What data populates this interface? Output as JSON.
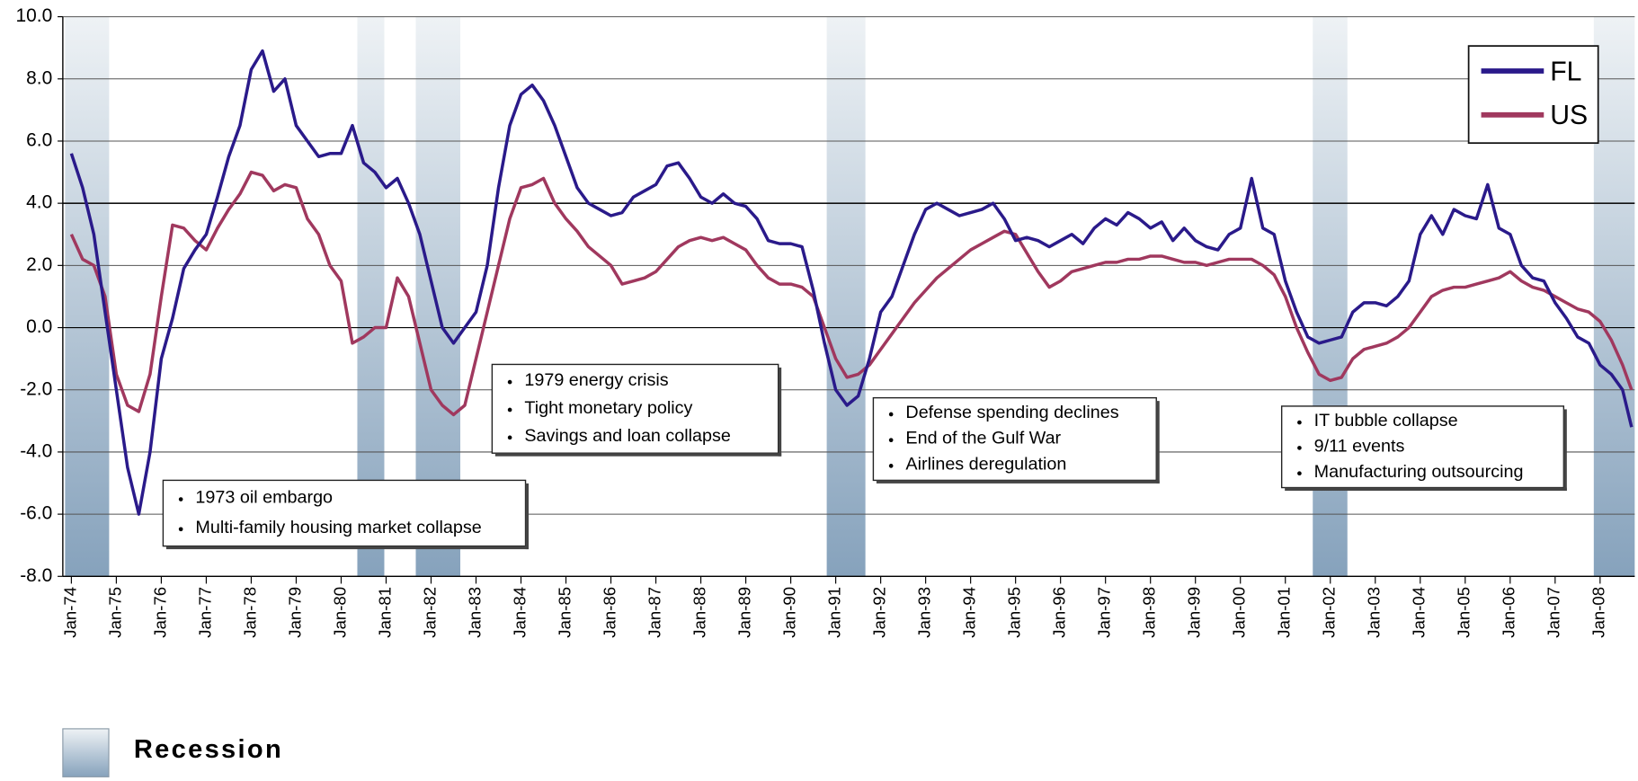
{
  "chart_data": {
    "type": "line",
    "xlim": [
      1973.81,
      2008.77
    ],
    "xticks": [
      {
        "value": 1974,
        "label": "Jan-74"
      },
      {
        "value": 1975,
        "label": "Jan-75"
      },
      {
        "value": 1976,
        "label": "Jan-76"
      },
      {
        "value": 1977,
        "label": "Jan-77"
      },
      {
        "value": 1978,
        "label": "Jan-78"
      },
      {
        "value": 1979,
        "label": "Jan-79"
      },
      {
        "value": 1980,
        "label": "Jan-80"
      },
      {
        "value": 1981,
        "label": "Jan-81"
      },
      {
        "value": 1982,
        "label": "Jan-82"
      },
      {
        "value": 1983,
        "label": "Jan-83"
      },
      {
        "value": 1984,
        "label": "Jan-84"
      },
      {
        "value": 1985,
        "label": "Jan-85"
      },
      {
        "value": 1986,
        "label": "Jan-86"
      },
      {
        "value": 1987,
        "label": "Jan-87"
      },
      {
        "value": 1988,
        "label": "Jan-88"
      },
      {
        "value": 1989,
        "label": "Jan-89"
      },
      {
        "value": 1990,
        "label": "Jan-90"
      },
      {
        "value": 1991,
        "label": "Jan-91"
      },
      {
        "value": 1992,
        "label": "Jan-92"
      },
      {
        "value": 1993,
        "label": "Jan-93"
      },
      {
        "value": 1994,
        "label": "Jan-94"
      },
      {
        "value": 1995,
        "label": "Jan-95"
      },
      {
        "value": 1996,
        "label": "Jan-96"
      },
      {
        "value": 1997,
        "label": "Jan-97"
      },
      {
        "value": 1998,
        "label": "Jan-98"
      },
      {
        "value": 1999,
        "label": "Jan-99"
      },
      {
        "value": 2000,
        "label": "Jan-00"
      },
      {
        "value": 2001,
        "label": "Jan-01"
      },
      {
        "value": 2002,
        "label": "Jan-02"
      },
      {
        "value": 2003,
        "label": "Jan-03"
      },
      {
        "value": 2004,
        "label": "Jan-04"
      },
      {
        "value": 2005,
        "label": "Jan-05"
      },
      {
        "value": 2006,
        "label": "Jan-06"
      },
      {
        "value": 2007,
        "label": "Jan-07"
      },
      {
        "value": 2008,
        "label": "Jan-08"
      }
    ],
    "ylim": [
      -8,
      10
    ],
    "yticks": [
      {
        "value": -8,
        "label": "-8.0"
      },
      {
        "value": -6,
        "label": "-6.0"
      },
      {
        "value": -4,
        "label": "-4.0"
      },
      {
        "value": -2,
        "label": "-2.0"
      },
      {
        "value": 0,
        "label": "0.0"
      },
      {
        "value": 2,
        "label": "2.0"
      },
      {
        "value": 4,
        "label": "4.0"
      },
      {
        "value": 6,
        "label": "6.0"
      },
      {
        "value": 8,
        "label": "8.0"
      },
      {
        "value": 10,
        "label": "10.0"
      }
    ],
    "grid": true,
    "legend": "upper right",
    "x": [
      1974,
      1974.25,
      1974.5,
      1974.75,
      1975,
      1975.25,
      1975.5,
      1975.75,
      1976,
      1976.25,
      1976.5,
      1976.75,
      1977,
      1977.25,
      1977.5,
      1977.75,
      1978,
      1978.25,
      1978.5,
      1978.75,
      1979,
      1979.25,
      1979.5,
      1979.75,
      1980,
      1980.25,
      1980.5,
      1980.75,
      1981,
      1981.25,
      1981.5,
      1981.75,
      1982,
      1982.25,
      1982.5,
      1982.75,
      1983,
      1983.25,
      1983.5,
      1983.75,
      1984,
      1984.25,
      1984.5,
      1984.75,
      1985,
      1985.25,
      1985.5,
      1985.75,
      1986,
      1986.25,
      1986.5,
      1986.75,
      1987,
      1987.25,
      1987.5,
      1987.75,
      1988,
      1988.25,
      1988.5,
      1988.75,
      1989,
      1989.25,
      1989.5,
      1989.75,
      1990,
      1990.25,
      1990.5,
      1990.75,
      1991,
      1991.25,
      1991.5,
      1991.75,
      1992,
      1992.25,
      1992.5,
      1992.75,
      1993,
      1993.25,
      1993.5,
      1993.75,
      1994,
      1994.25,
      1994.5,
      1994.75,
      1995,
      1995.25,
      1995.5,
      1995.75,
      1996,
      1996.25,
      1996.5,
      1996.75,
      1997,
      1997.25,
      1997.5,
      1997.75,
      1998,
      1998.25,
      1998.5,
      1998.75,
      1999,
      1999.25,
      1999.5,
      1999.75,
      2000,
      2000.25,
      2000.5,
      2000.75,
      2001,
      2001.25,
      2001.5,
      2001.75,
      2002,
      2002.25,
      2002.5,
      2002.75,
      2003,
      2003.25,
      2003.5,
      2003.75,
      2004,
      2004.25,
      2004.5,
      2004.75,
      2005,
      2005.25,
      2005.5,
      2005.75,
      2006,
      2006.25,
      2006.5,
      2006.75,
      2007,
      2007.25,
      2007.5,
      2007.75,
      2008,
      2008.25,
      2008.5,
      2008.7
    ],
    "series": [
      {
        "name": "FL",
        "color": "#2a1a8a",
        "values": [
          5.6,
          4.5,
          3.0,
          0.5,
          -2.0,
          -4.5,
          -6.0,
          -4.0,
          -1.0,
          0.3,
          1.9,
          2.5,
          3.0,
          4.2,
          5.5,
          6.5,
          8.3,
          8.9,
          7.6,
          8.0,
          6.5,
          6.0,
          5.5,
          5.6,
          5.6,
          6.5,
          5.3,
          5.0,
          4.5,
          4.8,
          4.0,
          3.0,
          1.5,
          0.0,
          -0.5,
          0.0,
          0.5,
          2.0,
          4.5,
          6.5,
          7.5,
          7.8,
          7.3,
          6.5,
          5.5,
          4.5,
          4.0,
          3.8,
          3.6,
          3.7,
          4.2,
          4.4,
          4.6,
          5.2,
          5.3,
          4.8,
          4.2,
          4.0,
          4.3,
          4.0,
          3.9,
          3.5,
          2.8,
          2.7,
          2.7,
          2.6,
          1.2,
          -0.5,
          -2.0,
          -2.5,
          -2.2,
          -1.0,
          0.5,
          1.0,
          2.0,
          3.0,
          3.8,
          4.0,
          3.8,
          3.6,
          3.7,
          3.8,
          4.0,
          3.5,
          2.8,
          2.9,
          2.8,
          2.6,
          2.8,
          3.0,
          2.7,
          3.2,
          3.5,
          3.3,
          3.7,
          3.5,
          3.2,
          3.4,
          2.8,
          3.2,
          2.8,
          2.6,
          2.5,
          3.0,
          3.2,
          4.8,
          3.2,
          3.0,
          1.5,
          0.5,
          -0.3,
          -0.5,
          -0.4,
          -0.3,
          0.5,
          0.8,
          0.8,
          0.7,
          1.0,
          1.5,
          3.0,
          3.6,
          3.0,
          3.8,
          3.6,
          3.5,
          4.6,
          3.2,
          3.0,
          2.0,
          1.6,
          1.5,
          0.8,
          0.3,
          -0.3,
          -0.5,
          -1.2,
          -1.5,
          -2.0,
          -3.2
        ]
      },
      {
        "name": "US",
        "color": "#a0385e",
        "values": [
          3.0,
          2.2,
          2.0,
          1.0,
          -1.5,
          -2.5,
          -2.7,
          -1.5,
          1.0,
          3.3,
          3.2,
          2.8,
          2.5,
          3.2,
          3.8,
          4.3,
          5.0,
          4.9,
          4.4,
          4.6,
          4.5,
          3.5,
          3.0,
          2.0,
          1.5,
          -0.5,
          -0.3,
          0.0,
          0.0,
          1.6,
          1.0,
          -0.5,
          -2.0,
          -2.5,
          -2.8,
          -2.5,
          -1.0,
          0.5,
          2.0,
          3.5,
          4.5,
          4.6,
          4.8,
          4.0,
          3.5,
          3.1,
          2.6,
          2.3,
          2.0,
          1.4,
          1.5,
          1.6,
          1.8,
          2.2,
          2.6,
          2.8,
          2.9,
          2.8,
          2.9,
          2.7,
          2.5,
          2.0,
          1.6,
          1.4,
          1.4,
          1.3,
          1.0,
          0.0,
          -1.0,
          -1.6,
          -1.5,
          -1.2,
          -0.7,
          -0.2,
          0.3,
          0.8,
          1.2,
          1.6,
          1.9,
          2.2,
          2.5,
          2.7,
          2.9,
          3.1,
          3.0,
          2.4,
          1.8,
          1.3,
          1.5,
          1.8,
          1.9,
          2.0,
          2.1,
          2.1,
          2.2,
          2.2,
          2.3,
          2.3,
          2.2,
          2.1,
          2.1,
          2.0,
          2.1,
          2.2,
          2.2,
          2.2,
          2.0,
          1.7,
          1.0,
          0.0,
          -0.8,
          -1.5,
          -1.7,
          -1.6,
          -1.0,
          -0.7,
          -0.6,
          -0.5,
          -0.3,
          0.0,
          0.5,
          1.0,
          1.2,
          1.3,
          1.3,
          1.4,
          1.5,
          1.6,
          1.8,
          1.5,
          1.3,
          1.2,
          1.0,
          0.8,
          0.6,
          0.5,
          0.2,
          -0.4,
          -1.2,
          -2.0
        ]
      }
    ],
    "recessions": [
      [
        1973.86,
        1974.84
      ],
      [
        1980.36,
        1980.96
      ],
      [
        1981.66,
        1982.65
      ],
      [
        1990.8,
        1991.66
      ],
      [
        2001.61,
        2002.38
      ],
      [
        2007.86,
        2008.77
      ]
    ],
    "recession_label": "Recession",
    "annotations": [
      {
        "lines": [
          "1973 oil embargo",
          "Multi-family housing market collapse"
        ]
      },
      {
        "lines": [
          "1979 energy crisis",
          "Tight monetary policy",
          "Savings and loan collapse"
        ]
      },
      {
        "lines": [
          "Defense spending declines",
          "End of the Gulf War",
          "Airlines deregulation"
        ]
      },
      {
        "lines": [
          "IT bubble collapse",
          "9/11 events",
          "Manufacturing outsourcing"
        ]
      }
    ]
  }
}
